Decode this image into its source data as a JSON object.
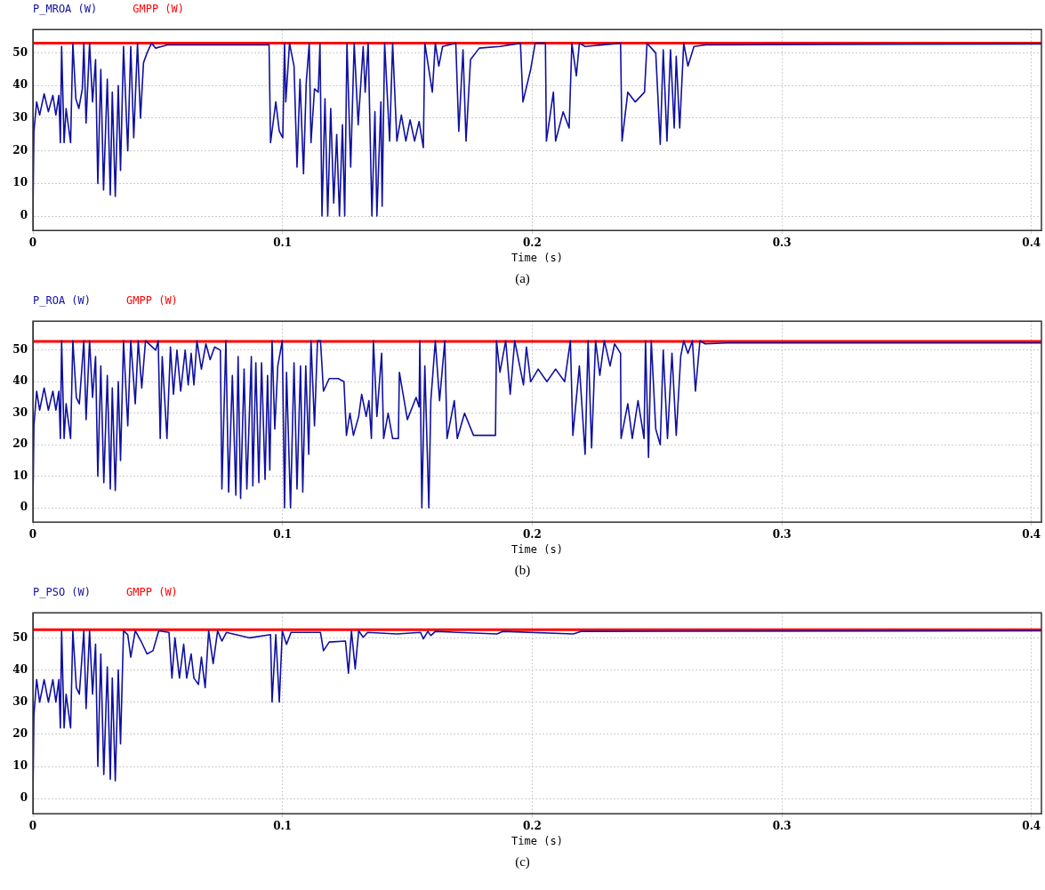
{
  "chart_data": [
    {
      "type": "line",
      "xlabel": "Time (s)",
      "annotations": [
        "(a)"
      ],
      "legend": "top left",
      "grid": true,
      "marker": "none",
      "line_style": "solid",
      "xlim": [
        0,
        0.404
      ],
      "ylim": [
        -4.4,
        57.2
      ],
      "xticks": [
        0,
        0.1,
        0.2,
        0.3,
        0.4
      ],
      "yticks": [
        0,
        10,
        20,
        30,
        40,
        50
      ],
      "series": [
        {
          "name": "P_MROA (W)",
          "color": "#1010a0",
          "x": [
            0,
            0.0004,
            0.0015,
            0.0027,
            0.0045,
            0.0062,
            0.008,
            0.0092,
            0.0104,
            0.011,
            0.0115,
            0.0125,
            0.0133,
            0.0151,
            0.016,
            0.0172,
            0.0184,
            0.0198,
            0.0204,
            0.0213,
            0.0227,
            0.0239,
            0.0251,
            0.026,
            0.0272,
            0.0283,
            0.0298,
            0.031,
            0.0318,
            0.033,
            0.0342,
            0.0351,
            0.0363,
            0.038,
            0.0392,
            0.0404,
            0.0419,
            0.0431,
            0.0443,
            0.0457,
            0.0475,
            0.0492,
            0.0516,
            0.0539,
            0.0946,
            0.0952,
            0.0973,
            0.0987,
            0.1001,
            0.1008,
            0.1013,
            0.1028,
            0.1046,
            0.1058,
            0.107,
            0.1084,
            0.1095,
            0.1107,
            0.1114,
            0.1128,
            0.1143,
            0.115,
            0.1158,
            0.117,
            0.1181,
            0.1193,
            0.1205,
            0.1217,
            0.1228,
            0.124,
            0.1249,
            0.1258,
            0.1273,
            0.1287,
            0.1303,
            0.1323,
            0.1331,
            0.1343,
            0.1358,
            0.137,
            0.1378,
            0.1394,
            0.1399,
            0.1409,
            0.1429,
            0.1441,
            0.1458,
            0.1476,
            0.1494,
            0.1511,
            0.1529,
            0.1547,
            0.1564,
            0.157,
            0.16,
            0.1612,
            0.1626,
            0.1641,
            0.1694,
            0.1706,
            0.1723,
            0.1735,
            0.1753,
            0.1788,
            0.1871,
            0.1953,
            0.1963,
            0.1994,
            0.2012,
            0.2053,
            0.2057,
            0.2085,
            0.2094,
            0.2124,
            0.2148,
            0.2159,
            0.2177,
            0.2189,
            0.2212,
            0.2354,
            0.236,
            0.2383,
            0.2413,
            0.245,
            0.246,
            0.2495,
            0.2513,
            0.2525,
            0.254,
            0.2554,
            0.2569,
            0.2577,
            0.2591,
            0.2607,
            0.2624,
            0.2648,
            0.2695,
            0.404
          ],
          "values": [
            0,
            26,
            35,
            31,
            37.5,
            32,
            37,
            31,
            37,
            22.5,
            52,
            22.5,
            33,
            22.5,
            53,
            36,
            33,
            39,
            53,
            28.5,
            53,
            35,
            48,
            10,
            45,
            8,
            42,
            6.5,
            38,
            6,
            40,
            14,
            52,
            20,
            52,
            24,
            53,
            30,
            47,
            50,
            53,
            51.5,
            52,
            52.5,
            52.5,
            22.5,
            35,
            26,
            24,
            53,
            35,
            53,
            46,
            15,
            42,
            13,
            41,
            53,
            22.5,
            39,
            38,
            53,
            0,
            36,
            0,
            33,
            4,
            25,
            0,
            28,
            0,
            53,
            15,
            53,
            28,
            52,
            38,
            53,
            0,
            32,
            0,
            35,
            3,
            53,
            23,
            53,
            23,
            31,
            23,
            29.5,
            23,
            29,
            21,
            53,
            38,
            53,
            46,
            52,
            53,
            26,
            51,
            23,
            48,
            51.5,
            52,
            53,
            35,
            45,
            53,
            53,
            23,
            38,
            23,
            32,
            27,
            53,
            43,
            53,
            52,
            53,
            23,
            38,
            35,
            38,
            53,
            50,
            22,
            51,
            23,
            51,
            27,
            49,
            27,
            53,
            46,
            52,
            52.5,
            52.8
          ]
        },
        {
          "name": "GMPP (W)",
          "color": "#ff0000",
          "x": [
            0,
            0.404
          ],
          "values": [
            53,
            53
          ]
        }
      ]
    },
    {
      "type": "line",
      "xlabel": "Time (s)",
      "annotations": [
        "(b)"
      ],
      "legend": "top left",
      "grid": true,
      "marker": "none",
      "line_style": "solid",
      "xlim": [
        0,
        0.404
      ],
      "ylim": [
        -4.5,
        59.2
      ],
      "xticks": [
        0,
        0.1,
        0.2,
        0.3,
        0.4
      ],
      "yticks": [
        0,
        10,
        20,
        30,
        40,
        50
      ],
      "series": [
        {
          "name": "P_ROA (W)",
          "color": "#1010a0",
          "x": [
            0,
            0.0004,
            0.0015,
            0.0027,
            0.0045,
            0.0062,
            0.008,
            0.0092,
            0.0104,
            0.011,
            0.0115,
            0.0125,
            0.0133,
            0.0151,
            0.016,
            0.0174,
            0.0186,
            0.0204,
            0.0213,
            0.0227,
            0.0239,
            0.0251,
            0.026,
            0.0272,
            0.0284,
            0.0298,
            0.031,
            0.0318,
            0.033,
            0.0342,
            0.0351,
            0.0363,
            0.038,
            0.0392,
            0.041,
            0.0422,
            0.0436,
            0.0451,
            0.0492,
            0.0502,
            0.051,
            0.0518,
            0.0537,
            0.0551,
            0.0563,
            0.0577,
            0.0592,
            0.061,
            0.0622,
            0.0634,
            0.0645,
            0.0657,
            0.0675,
            0.0693,
            0.071,
            0.0728,
            0.0751,
            0.0757,
            0.0773,
            0.0784,
            0.0799,
            0.0813,
            0.0822,
            0.0832,
            0.0846,
            0.0857,
            0.0875,
            0.0881,
            0.0893,
            0.0905,
            0.0916,
            0.093,
            0.094,
            0.0949,
            0.0958,
            0.0969,
            0.0981,
            0.0999,
            0.1008,
            0.1016,
            0.1032,
            0.1046,
            0.1058,
            0.1072,
            0.1081,
            0.1093,
            0.1105,
            0.1114,
            0.1128,
            0.114,
            0.1152,
            0.1164,
            0.1187,
            0.1223,
            0.1246,
            0.1256,
            0.127,
            0.1284,
            0.1305,
            0.1317,
            0.1335,
            0.1346,
            0.1356,
            0.1364,
            0.1378,
            0.1397,
            0.1405,
            0.1423,
            0.1441,
            0.1464,
            0.1468,
            0.15,
            0.1535,
            0.1547,
            0.155,
            0.1558,
            0.157,
            0.1586,
            0.1594,
            0.1612,
            0.1629,
            0.165,
            0.1659,
            0.1688,
            0.17,
            0.1729,
            0.1765,
            0.1812,
            0.1853,
            0.1857,
            0.1871,
            0.1894,
            0.1912,
            0.193,
            0.1965,
            0.1977,
            0.1994,
            0.2024,
            0.2059,
            0.2094,
            0.213,
            0.2153,
            0.2163,
            0.2189,
            0.2212,
            0.2224,
            0.2238,
            0.2254,
            0.2271,
            0.2289,
            0.2312,
            0.233,
            0.2354,
            0.2356,
            0.2383,
            0.2401,
            0.2424,
            0.2448,
            0.2454,
            0.2466,
            0.2477,
            0.2495,
            0.2513,
            0.2525,
            0.2542,
            0.256,
            0.2577,
            0.2595,
            0.2607,
            0.2624,
            0.2642,
            0.2654,
            0.2672,
            0.2693,
            0.278,
            0.404
          ],
          "values": [
            0,
            26,
            37,
            31,
            38,
            31,
            37,
            31,
            37,
            22,
            53,
            22,
            33,
            22,
            53,
            35,
            33,
            53,
            28,
            53,
            35,
            48,
            10,
            45,
            8,
            42,
            6,
            38,
            5.5,
            40,
            15,
            53,
            26,
            53,
            33,
            53,
            38,
            53,
            50,
            53,
            22,
            48,
            22,
            51,
            36,
            50,
            37,
            50,
            39,
            49,
            39,
            53,
            44,
            52,
            47,
            51,
            50,
            6,
            53,
            5,
            42,
            4,
            48,
            3,
            44,
            6,
            48,
            7,
            46,
            8,
            46,
            9,
            42,
            12,
            53,
            25,
            45,
            53,
            0,
            43,
            0,
            46,
            6,
            45,
            5,
            45,
            17,
            53,
            26,
            53,
            53,
            37,
            41,
            41,
            40,
            23,
            30,
            23,
            29,
            36,
            29,
            34,
            22,
            53,
            29,
            49,
            22,
            30,
            22,
            22,
            43,
            28,
            35,
            32,
            53,
            0,
            45,
            0,
            34,
            53,
            34,
            53,
            22,
            34,
            22,
            30,
            23,
            23,
            23,
            53,
            43,
            53,
            36,
            53,
            39,
            51,
            40,
            44,
            40,
            44,
            40,
            53,
            23,
            45,
            17,
            53,
            19,
            53,
            42,
            53,
            45,
            52,
            49,
            22,
            33,
            22,
            34,
            22,
            53,
            16,
            53,
            25,
            20,
            50,
            22,
            49,
            23,
            48,
            53,
            49,
            53,
            37,
            53,
            52,
            52.3,
            52.3
          ]
        },
        {
          "name": "GMPP (W)",
          "color": "#ff0000",
          "x": [
            0,
            0.404
          ],
          "values": [
            52.8,
            52.8
          ]
        }
      ]
    },
    {
      "type": "line",
      "xlabel": "Time (s)",
      "annotations": [
        "(c)"
      ],
      "legend": "top left",
      "grid": true,
      "marker": "none",
      "line_style": "solid",
      "xlim": [
        0,
        0.404
      ],
      "ylim": [
        -4.7,
        57.8
      ],
      "xticks": [
        0,
        0.1,
        0.2,
        0.3,
        0.4
      ],
      "yticks": [
        0,
        10,
        20,
        30,
        40,
        50
      ],
      "series": [
        {
          "name": "P_PSO (W)",
          "color": "#1010a0",
          "x": [
            0,
            0.0004,
            0.0015,
            0.0027,
            0.0045,
            0.0062,
            0.008,
            0.0092,
            0.0104,
            0.011,
            0.0115,
            0.0125,
            0.0133,
            0.0151,
            0.016,
            0.0174,
            0.0186,
            0.0204,
            0.0213,
            0.0227,
            0.0239,
            0.0251,
            0.026,
            0.0272,
            0.0284,
            0.0298,
            0.031,
            0.0318,
            0.033,
            0.0342,
            0.0351,
            0.0363,
            0.038,
            0.0392,
            0.041,
            0.0433,
            0.0457,
            0.0481,
            0.0504,
            0.0545,
            0.0557,
            0.0569,
            0.0587,
            0.0604,
            0.0616,
            0.0634,
            0.0645,
            0.0663,
            0.0675,
            0.069,
            0.0704,
            0.0722,
            0.074,
            0.0757,
            0.0775,
            0.0869,
            0.0952,
            0.0958,
            0.0973,
            0.0987,
            0.0999,
            0.1016,
            0.1034,
            0.1152,
            0.1164,
            0.1187,
            0.1252,
            0.1264,
            0.1276,
            0.1291,
            0.1305,
            0.1323,
            0.1341,
            0.1458,
            0.1553,
            0.1564,
            0.1582,
            0.1594,
            0.1612,
            0.1859,
            0.1882,
            0.2165,
            0.2195,
            0.404
          ],
          "values": [
            0,
            26,
            37,
            30,
            37,
            30,
            37,
            30,
            37,
            22,
            52.2,
            22,
            32.5,
            22,
            52.2,
            34.5,
            32.5,
            52.2,
            28,
            52.2,
            32.5,
            48,
            10,
            45,
            7.5,
            41,
            6,
            37.5,
            5.5,
            40,
            17,
            52.2,
            51,
            44,
            52.2,
            49,
            45,
            46,
            52.2,
            51.7,
            37.5,
            50,
            37.5,
            48,
            37.5,
            45,
            37.5,
            35.5,
            44,
            34.5,
            52.2,
            42,
            52.2,
            49,
            51.7,
            50,
            51,
            30,
            51,
            30,
            52.2,
            48,
            51.7,
            51.7,
            46,
            48.7,
            49,
            39,
            52.2,
            40.4,
            52.2,
            50.2,
            51.7,
            51.2,
            51.7,
            49.7,
            52,
            50.7,
            52,
            51.2,
            52,
            51.2,
            52,
            52.2
          ]
        },
        {
          "name": "GMPP (W)",
          "color": "#ff0000",
          "x": [
            0,
            0.404
          ],
          "values": [
            52.5,
            52.5
          ]
        }
      ]
    }
  ]
}
